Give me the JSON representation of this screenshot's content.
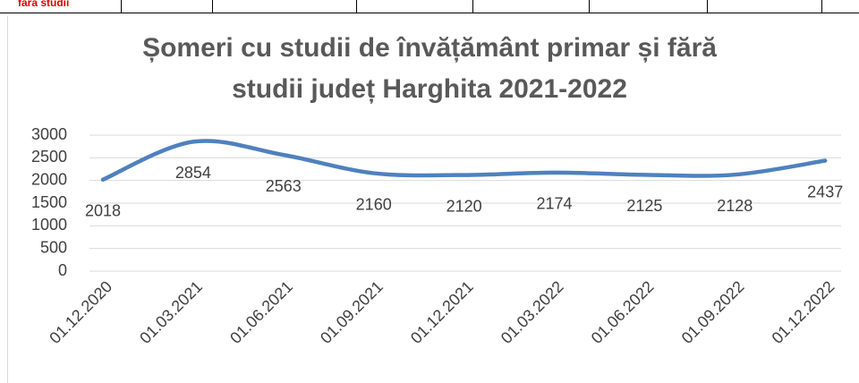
{
  "table_fragment": {
    "label": "fără studii"
  },
  "chart_data": {
    "type": "line",
    "title": [
      "Șomeri cu studii de învățământ primar și fără",
      "studii județ Harghita 2021-2022"
    ],
    "categories": [
      "01.12.2020",
      "01.03.2021",
      "01.06.2021",
      "01.09.2021",
      "01.12.2021",
      "01.03.2022",
      "01.06.2022",
      "01.09.2022",
      "01.12.2022"
    ],
    "values": [
      2018,
      2854,
      2563,
      2160,
      2120,
      2174,
      2125,
      2128,
      2437
    ],
    "color": "#4f81bd",
    "ylim": [
      0,
      3000
    ],
    "yticks": [
      0,
      500,
      1000,
      1500,
      2000,
      2500,
      3000
    ],
    "grid": true
  }
}
